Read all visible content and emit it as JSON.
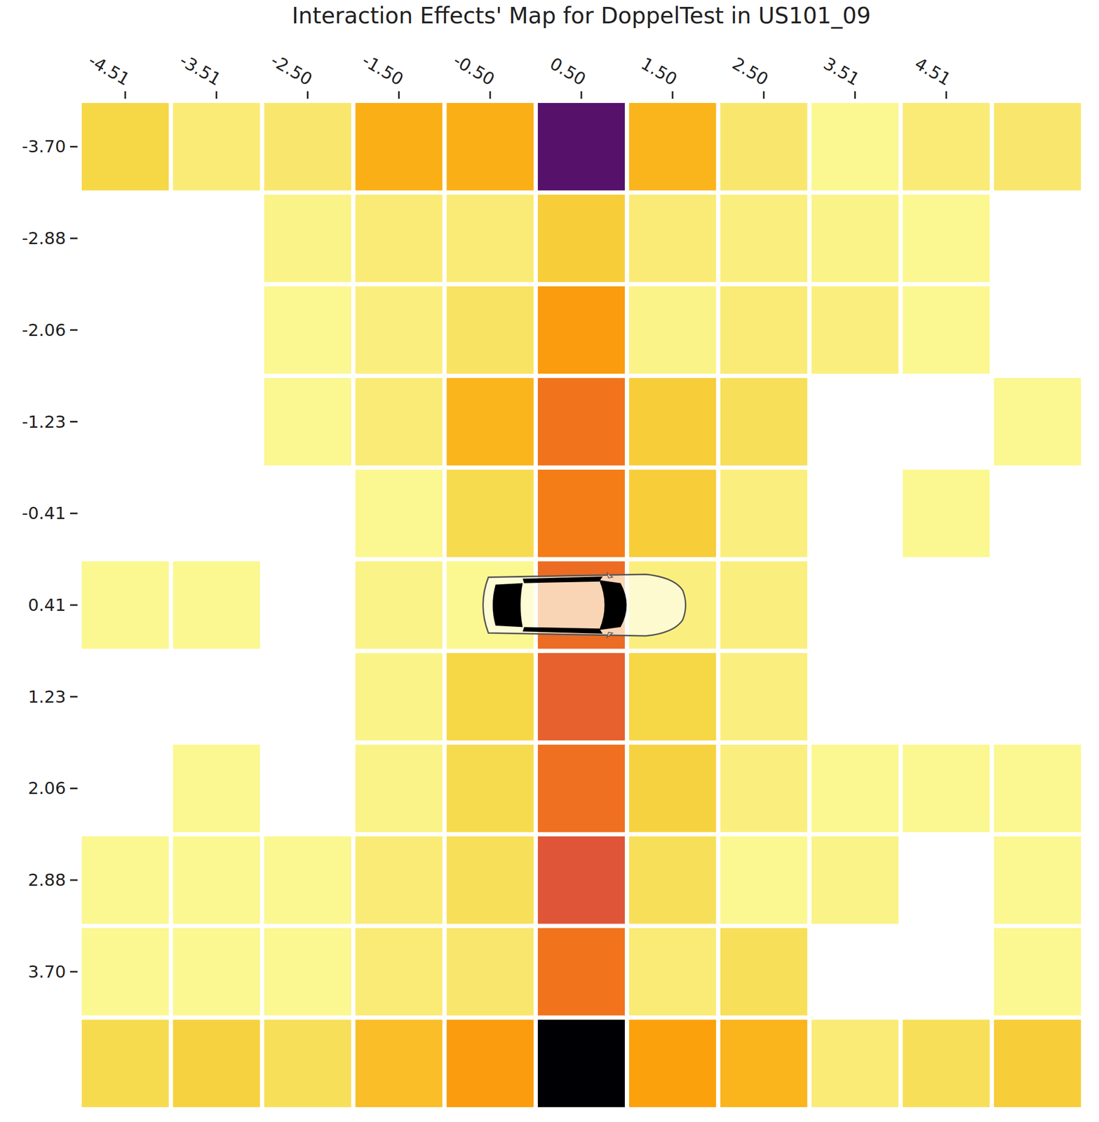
{
  "chart_data": {
    "type": "heatmap",
    "title": "Interaction Effects' Map for DoppelTest in US101_09",
    "x_categories": [
      "-4.51",
      "-3.51",
      "-2.50",
      "-1.50",
      "-0.50",
      "0.50",
      "1.50",
      "2.50",
      "3.51",
      "4.51",
      null
    ],
    "y_categories": [
      "-3.70",
      "-2.88",
      "-2.06",
      "-1.23",
      "-0.41",
      "0.41",
      "1.23",
      "2.06",
      "2.88",
      "3.70",
      null
    ],
    "value_range": [
      0,
      1
    ],
    "grid": false,
    "cells": [
      [
        0.1,
        0.05,
        0.06,
        0.18,
        0.18,
        0.75,
        0.17,
        0.06,
        0.02,
        0.05,
        0.06
      ],
      [
        null,
        null,
        0.03,
        0.05,
        0.05,
        0.12,
        0.05,
        0.04,
        0.03,
        0.02,
        null
      ],
      [
        null,
        null,
        0.02,
        0.04,
        0.07,
        0.22,
        0.03,
        0.05,
        0.04,
        0.02,
        null
      ],
      [
        null,
        null,
        0.02,
        0.05,
        0.17,
        0.31,
        0.12,
        0.08,
        null,
        null,
        0.02
      ],
      [
        null,
        null,
        null,
        0.02,
        0.09,
        0.29,
        0.12,
        0.04,
        null,
        0.02,
        null
      ],
      [
        0.02,
        0.02,
        null,
        0.03,
        0.02,
        0.33,
        0.04,
        0.04,
        null,
        null,
        null
      ],
      [
        null,
        null,
        null,
        0.03,
        0.1,
        0.36,
        0.1,
        0.04,
        null,
        null,
        null
      ],
      [
        null,
        0.02,
        null,
        0.03,
        0.09,
        0.32,
        0.11,
        0.04,
        0.02,
        0.02,
        0.02
      ],
      [
        0.02,
        0.02,
        0.02,
        0.05,
        0.08,
        0.39,
        0.08,
        0.02,
        0.03,
        null,
        0.02
      ],
      [
        0.02,
        0.02,
        0.02,
        0.05,
        0.06,
        0.31,
        0.05,
        0.08,
        null,
        null,
        0.02
      ],
      [
        0.09,
        0.11,
        0.08,
        0.15,
        0.22,
        1.0,
        0.21,
        0.17,
        0.05,
        0.08,
        0.12
      ]
    ]
  }
}
